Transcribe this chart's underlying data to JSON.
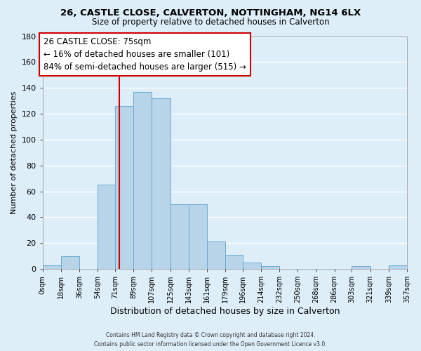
{
  "title": "26, CASTLE CLOSE, CALVERTON, NOTTINGHAM, NG14 6LX",
  "subtitle": "Size of property relative to detached houses in Calverton",
  "xlabel": "Distribution of detached houses by size in Calverton",
  "ylabel": "Number of detached properties",
  "bin_edges": [
    0,
    18,
    36,
    54,
    71,
    89,
    107,
    125,
    143,
    161,
    179,
    196,
    214,
    232,
    250,
    268,
    286,
    303,
    321,
    339,
    357
  ],
  "bin_heights": [
    3,
    10,
    0,
    65,
    126,
    137,
    132,
    50,
    50,
    21,
    11,
    5,
    2,
    0,
    0,
    0,
    0,
    2,
    0,
    3
  ],
  "tick_labels": [
    "0sqm",
    "18sqm",
    "36sqm",
    "54sqm",
    "71sqm",
    "89sqm",
    "107sqm",
    "125sqm",
    "143sqm",
    "161sqm",
    "179sqm",
    "196sqm",
    "214sqm",
    "232sqm",
    "250sqm",
    "268sqm",
    "286sqm",
    "303sqm",
    "321sqm",
    "339sqm",
    "357sqm"
  ],
  "bar_color": "#b8d4e8",
  "bar_edge_color": "#6aaad4",
  "vline_x": 75,
  "vline_color": "#cc0000",
  "ylim": [
    0,
    180
  ],
  "yticks": [
    0,
    20,
    40,
    60,
    80,
    100,
    120,
    140,
    160,
    180
  ],
  "annotation_title": "26 CASTLE CLOSE: 75sqm",
  "annotation_line1": "← 16% of detached houses are smaller (101)",
  "annotation_line2": "84% of semi-detached houses are larger (515) →",
  "annotation_box_facecolor": "#ffffff",
  "annotation_box_edgecolor": "#cc0000",
  "footer1": "Contains HM Land Registry data © Crown copyright and database right 2024.",
  "footer2": "Contains public sector information licensed under the Open Government Licence v3.0.",
  "background_color": "#ddeef8",
  "grid_color": "#ffffff",
  "title_fontsize": 9.5,
  "subtitle_fontsize": 8.5,
  "ylabel_fontsize": 8,
  "xlabel_fontsize": 9
}
